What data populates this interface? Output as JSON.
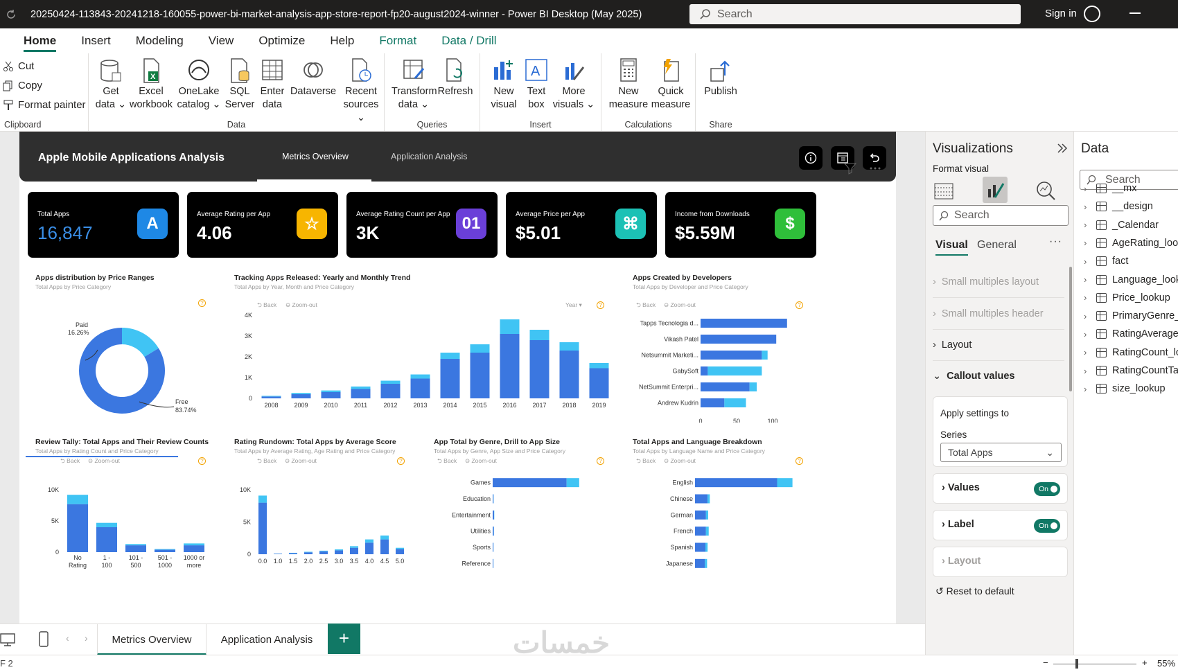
{
  "window": {
    "title": "20250424-113843-20241218-160055-power-bi-market-analysis-app-store-report-fp20-august2024-winner - Power BI Desktop (May 2025)",
    "search_placeholder": "Search",
    "sign_in": "Sign in"
  },
  "menu_tabs": [
    "Home",
    "Insert",
    "Modeling",
    "View",
    "Optimize",
    "Help",
    "Format",
    "Data / Drill"
  ],
  "ribbon": {
    "clipboard": {
      "cut": "Cut",
      "copy": "Copy",
      "format_painter": "Format painter",
      "label": "Clipboard"
    },
    "data": {
      "label": "Data",
      "buttons": [
        {
          "l1": "Get",
          "l2": "data ⌄"
        },
        {
          "l1": "Excel",
          "l2": "workbook"
        },
        {
          "l1": "OneLake",
          "l2": "catalog ⌄"
        },
        {
          "l1": "SQL",
          "l2": "Server"
        },
        {
          "l1": "Enter",
          "l2": "data"
        },
        {
          "l1": "Dataverse",
          "l2": ""
        },
        {
          "l1": "Recent",
          "l2": "sources ⌄"
        }
      ]
    },
    "queries": {
      "label": "Queries",
      "transform": {
        "l1": "Transform",
        "l2": "data ⌄"
      },
      "refresh": "Refresh"
    },
    "insert": {
      "label": "Insert",
      "new_visual": {
        "l1": "New",
        "l2": "visual"
      },
      "text_box": {
        "l1": "Text",
        "l2": "box"
      },
      "more_visuals": {
        "l1": "More",
        "l2": "visuals ⌄"
      }
    },
    "calculations": {
      "label": "Calculations",
      "new_measure": {
        "l1": "New",
        "l2": "measure"
      },
      "quick_measure": {
        "l1": "Quick",
        "l2": "measure"
      }
    },
    "share": {
      "label": "Share",
      "publish": "Publish"
    }
  },
  "report": {
    "title": "Apple Mobile Applications Analysis",
    "tabs": [
      "Metrics Overview",
      "Application Analysis"
    ],
    "kpis": [
      {
        "label": "Total Apps",
        "value": "16,847",
        "icon": "app-store-icon",
        "color": "#1e88e5"
      },
      {
        "label": "Average Rating per App",
        "value": "4.06",
        "icon": "star-icon",
        "color": "#f7b500"
      },
      {
        "label": "Average Rating Count per App",
        "value": "3K",
        "icon": "counter-icon",
        "color": "#6a3fd8"
      },
      {
        "label": "Average Price per App",
        "value": "$5.01",
        "icon": "price-tag-icon",
        "color": "#1cc1b5"
      },
      {
        "label": "Income from Downloads",
        "value": "$5.59M",
        "icon": "dollar-icon",
        "color": "#2fbf3a"
      }
    ]
  },
  "controls": {
    "back": "Back",
    "zoom_out": "Zoom-out",
    "year_menu": "Year ▾"
  },
  "colors": {
    "primary": "#3b77e0",
    "secondary": "#40c4f4",
    "accent": "#117865"
  },
  "visuals": {
    "price_ranges": {
      "title": "Apps distribution by Price Ranges",
      "subtitle": "Total Apps by Price Category"
    },
    "release_trend": {
      "title": "Tracking Apps Released: Yearly and Monthly Trend",
      "subtitle": "Total Apps by Year, Month and Price Category"
    },
    "developers": {
      "title": "Apps Created by Developers",
      "subtitle": "Total Apps by Developer and Price Category"
    },
    "review_tally": {
      "title": "Review Tally: Total Apps and Their Review Counts",
      "subtitle": "Total Apps by Rating Count and Price Category"
    },
    "rating_rundown": {
      "title": "Rating Rundown: Total Apps by Average Score",
      "subtitle": "Total Apps by Average Rating, Age Rating and Price Category"
    },
    "genre": {
      "title": "App Total by Genre, Drill to App Size",
      "subtitle": "Total Apps by Genre, App Size and Price Category"
    },
    "language": {
      "title": "Total Apps and Language Breakdown",
      "subtitle": "Total Apps by Language Name and Price Category"
    }
  },
  "chart_data": [
    {
      "type": "pie",
      "id": "price_ranges",
      "categories": [
        "Paid",
        "Free"
      ],
      "values": [
        16.26,
        83.74
      ],
      "labels": [
        "Paid",
        "16.26%",
        "Free",
        "83.74%"
      ]
    },
    {
      "type": "bar",
      "id": "release_trend",
      "categories": [
        "2008",
        "2009",
        "2010",
        "2011",
        "2012",
        "2013",
        "2014",
        "2015",
        "2016",
        "2017",
        "2018",
        "2019"
      ],
      "series": [
        {
          "values": [
            90,
            200,
            300,
            450,
            700,
            950,
            1900,
            2200,
            3100,
            2800,
            2300,
            1450
          ]
        },
        {
          "values": [
            30,
            60,
            80,
            120,
            150,
            200,
            300,
            400,
            700,
            500,
            400,
            250
          ]
        }
      ],
      "y_ticks": [
        "0",
        "1K",
        "2K",
        "3K",
        "4K"
      ],
      "ylim": [
        0,
        4000
      ]
    },
    {
      "type": "bar",
      "id": "developers",
      "categories": [
        "Tapps Tecnologia d...",
        "Vikash Patel",
        "Netsummit Marketi...",
        "GabySoft",
        "NetSummit Enterpri...",
        "Andrew Kudrin"
      ],
      "series": [
        {
          "values": [
            120,
            105,
            85,
            10,
            68,
            33
          ]
        },
        {
          "values": [
            0,
            0,
            8,
            75,
            10,
            30
          ]
        }
      ],
      "x_ticks": [
        "0",
        "50",
        "100"
      ],
      "xlim": [
        0,
        150
      ]
    },
    {
      "type": "bar",
      "id": "review_tally",
      "categories": [
        "No Rating",
        "1 - 100",
        "101 - 500",
        "501 - 1000",
        "1000 or more"
      ],
      "series": [
        {
          "values": [
            7700,
            4000,
            1100,
            400,
            1100
          ]
        },
        {
          "values": [
            1500,
            700,
            200,
            100,
            300
          ]
        }
      ],
      "y_ticks": [
        "0",
        "5K",
        "10K"
      ],
      "ylim": [
        0,
        10000
      ]
    },
    {
      "type": "bar",
      "id": "rating_rundown",
      "categories": [
        "0.0",
        "1.0",
        "1.5",
        "2.0",
        "2.5",
        "3.0",
        "3.5",
        "4.0",
        "4.5",
        "5.0"
      ],
      "series": [
        {
          "values": [
            8000,
            80,
            180,
            300,
            450,
            600,
            1000,
            1800,
            2300,
            800
          ]
        },
        {
          "values": [
            1100,
            20,
            40,
            80,
            100,
            150,
            250,
            500,
            600,
            200
          ]
        }
      ],
      "y_ticks": [
        "0",
        "5K",
        "10K"
      ],
      "ylim": [
        0,
        10000
      ]
    },
    {
      "type": "bar",
      "id": "genre",
      "categories": [
        "Games",
        "Education",
        "Entertainment",
        "Utilities",
        "Sports",
        "Reference"
      ],
      "series": [
        {
          "values": [
            13500,
            150,
            250,
            200,
            130,
            120
          ]
        },
        {
          "values": [
            2300,
            30,
            40,
            30,
            20,
            20
          ]
        }
      ],
      "x_ticks": [
        "0",
        "5K",
        "10K",
        "15K"
      ],
      "xlim": [
        0,
        20000
      ]
    },
    {
      "type": "bar",
      "id": "language",
      "categories": [
        "English",
        "Chinese",
        "German",
        "French",
        "Spanish",
        "Japanese"
      ],
      "series": [
        {
          "values": [
            15000,
            2300,
            2000,
            2000,
            1900,
            1800
          ]
        },
        {
          "values": [
            2800,
            400,
            400,
            500,
            400,
            400
          ]
        }
      ],
      "x_ticks": [
        "0",
        "5K",
        "10K",
        "15K"
      ],
      "xlim": [
        0,
        20000
      ]
    }
  ],
  "bottom_tabs": [
    "Metrics Overview",
    "Application Analysis"
  ],
  "add_page": "+",
  "status": {
    "page": "F 2",
    "zoom": "55%"
  },
  "viz_pane": {
    "title": "Visualizations",
    "format_visual": "Format visual",
    "search": "Search",
    "tabs": [
      "Visual",
      "General"
    ],
    "sections": [
      "Small multiples layout",
      "Small multiples header",
      "Layout",
      "Callout values"
    ],
    "apply_settings": "Apply settings to",
    "series_label": "Series",
    "series_value": "Total Apps",
    "values": "Values",
    "label": "Label",
    "layout": "Layout",
    "toggle_on": "On",
    "reset": "Reset to default"
  },
  "data_pane": {
    "title": "Data",
    "search": "Search",
    "items": [
      "__mx",
      "__design",
      "_Calendar",
      "AgeRating_lookup",
      "fact",
      "Language_lookup",
      "Price_lookup",
      "PrimaryGenre_lookup",
      "RatingAverage_lookup",
      "RatingCount_lookup",
      "RatingCountTag",
      "size_lookup"
    ]
  },
  "watermark": "خمسات"
}
